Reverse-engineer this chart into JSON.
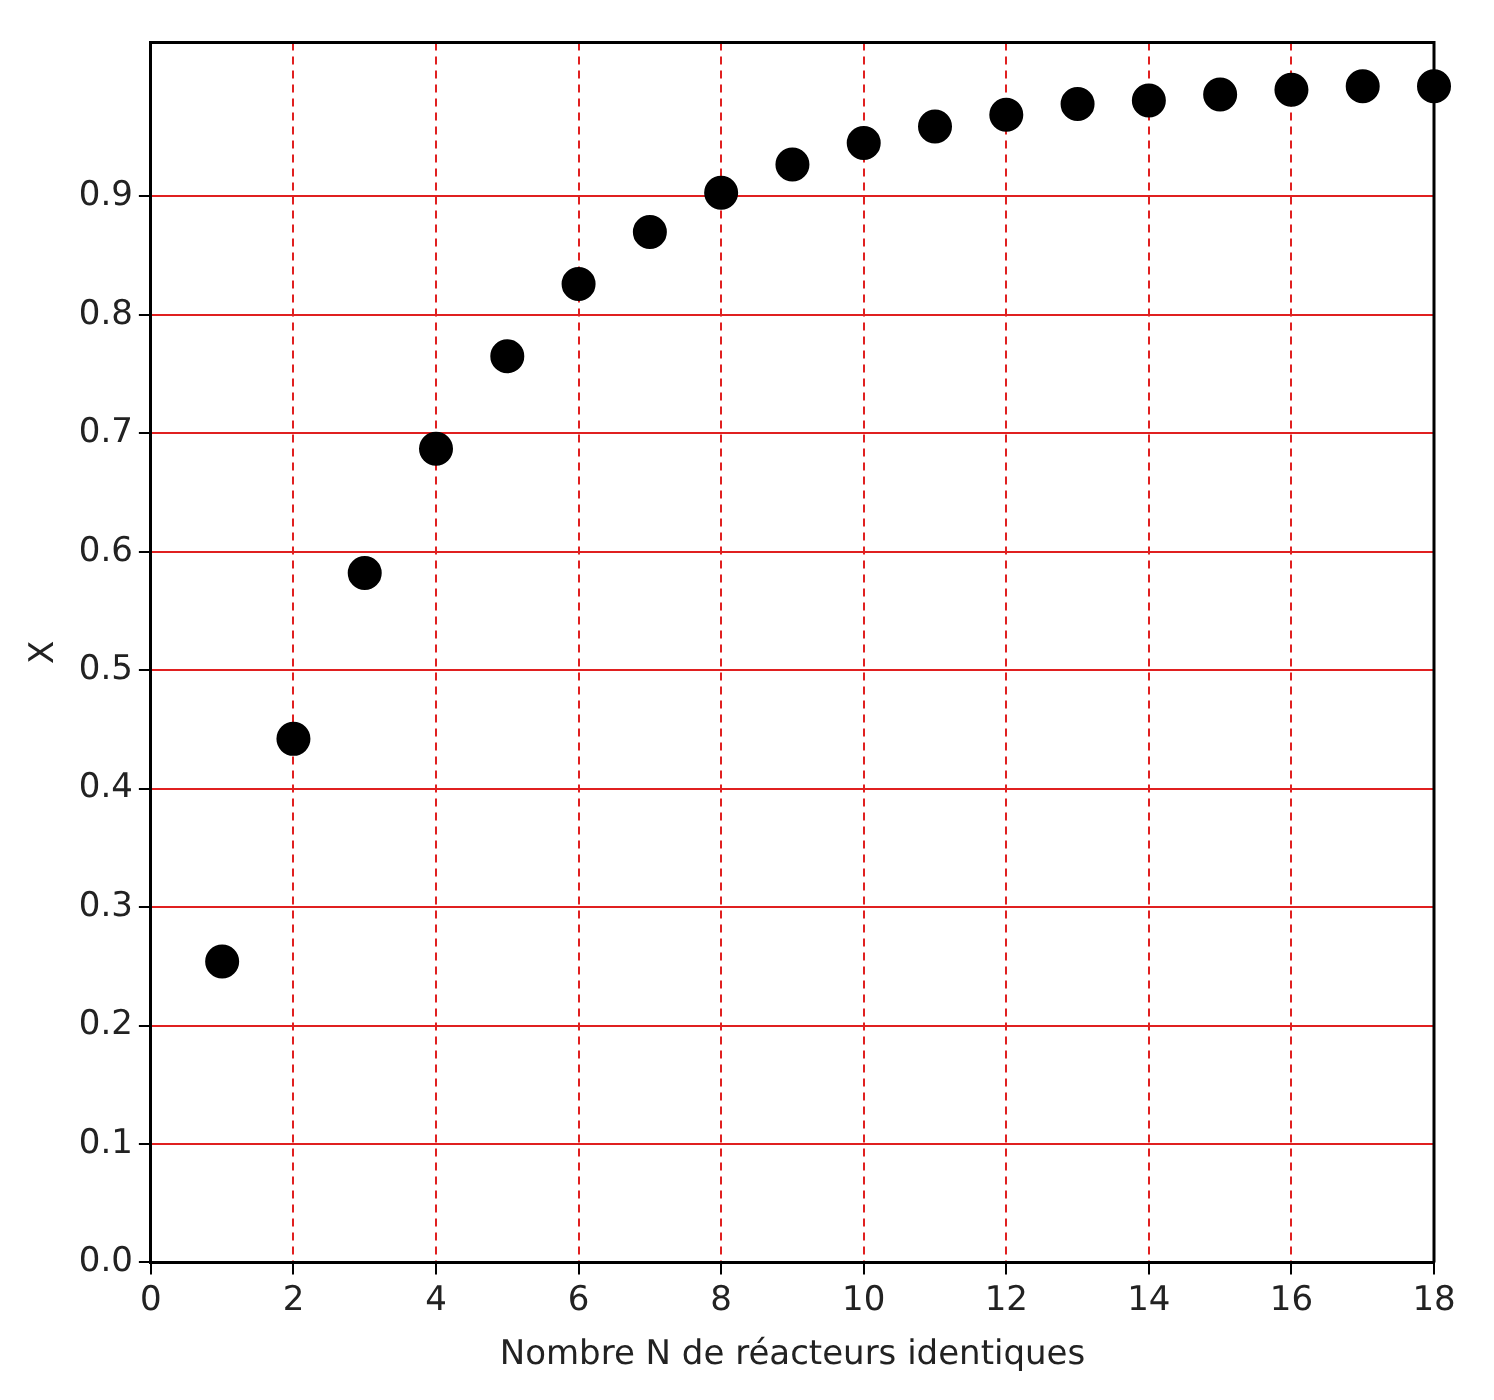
{
  "chart_data": {
    "type": "scatter",
    "xlabel": "Nombre N de réacteurs identiques",
    "ylabel": "X",
    "x": [
      1,
      2,
      3,
      4,
      5,
      6,
      7,
      8,
      9,
      10,
      11,
      12,
      13,
      14,
      15,
      16,
      17,
      18
    ],
    "series": [
      {
        "color": "#000000",
        "values": [
          0.254,
          0.442,
          0.582,
          0.687,
          0.765,
          0.826,
          0.87,
          0.903,
          0.927,
          0.945,
          0.959,
          0.969,
          0.978,
          0.981,
          0.986,
          0.99,
          0.993,
          0.993
        ]
      }
    ],
    "xlim": [
      0,
      18
    ],
    "xticks": [
      0,
      2,
      4,
      6,
      8,
      10,
      12,
      14,
      16,
      18
    ],
    "ylim": [
      0,
      1.03
    ],
    "yticks": [
      {
        "value": 0,
        "label": "0.0"
      },
      0.1,
      0.2,
      0.3,
      0.4,
      0.5,
      0.6,
      0.7,
      0.8,
      0.9
    ],
    "grid": true,
    "marker": "circle",
    "legend": false
  }
}
